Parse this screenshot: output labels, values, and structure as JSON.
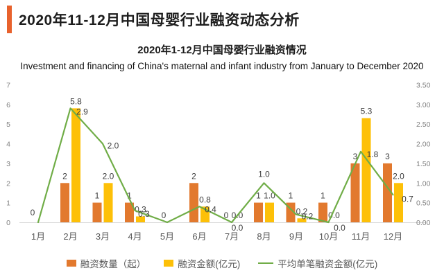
{
  "header": {
    "title": "2020年11-12月中国母婴行业融资动态分析"
  },
  "titles": {
    "zh": "2020年1-12月中国母婴行业融资情况",
    "en": "Investment and financing of China's maternal and infant industry from January to December 2020"
  },
  "colors": {
    "accent": "#E8622D",
    "bar_count": "#E2792E",
    "bar_amount": "#FDC008",
    "line_avg": "#70AD47",
    "axis_line": "#D9D9D9",
    "tick_text": "#808080",
    "category_text": "#595959",
    "value_text": "#3D3D3D"
  },
  "chart_data": {
    "type": "combo-bar-line",
    "title": "2020年1-12月中国母婴行业融资情况",
    "categories": [
      "1月",
      "2月",
      "3月",
      "4月",
      "5月",
      "6月",
      "7月",
      "8月",
      "9月",
      "10月",
      "11月",
      "12月"
    ],
    "series": [
      {
        "name": "融资数量（起）",
        "type": "bar",
        "axis": "left",
        "color": "#E2792E",
        "values": [
          0,
          2,
          1,
          1,
          0,
          2,
          0,
          1,
          1,
          1,
          3,
          3
        ],
        "labels": [
          "",
          "2",
          "1",
          "1",
          "",
          "2",
          "0",
          "1",
          "1",
          "1",
          "3",
          "3"
        ]
      },
      {
        "name": "融资金额(亿元)",
        "type": "bar",
        "axis": "left",
        "color": "#FDC008",
        "values": [
          0,
          5.8,
          2.0,
          0.3,
          0,
          0.8,
          0,
          1.0,
          0.2,
          0,
          5.3,
          2.0
        ],
        "labels": [
          "",
          "5.8",
          "2.0",
          "0.3",
          "",
          "0.8",
          "0.0",
          "1.0",
          "0.2",
          "0.0",
          "5.3",
          "2.0"
        ]
      },
      {
        "name": "平均单笔融资金额(亿元)",
        "type": "line",
        "axis": "right",
        "color": "#70AD47",
        "values": [
          0,
          2.9,
          2.0,
          0.3,
          0,
          0.4,
          0,
          1.0,
          0.2,
          0,
          1.8,
          0.7
        ],
        "labels": [
          "0",
          "2.9",
          "2.0",
          "0.3",
          "0",
          "0.4",
          "0.0",
          "1.0",
          "0.2",
          "0.0",
          "1.8",
          "0.7"
        ],
        "label_offsets": [
          [
            -8,
            -10
          ],
          [
            17,
            9
          ],
          [
            15,
            7
          ],
          [
            13,
            9
          ],
          [
            -5,
            -6
          ],
          [
            16,
            8
          ],
          [
            8,
            12
          ],
          [
            0,
            -9
          ],
          [
            16,
            7
          ],
          [
            16,
            12
          ],
          [
            17,
            8
          ],
          [
            21,
            10
          ]
        ]
      }
    ],
    "left_axis": {
      "min": 0,
      "max": 7,
      "ticks": [
        "0",
        "1",
        "2",
        "3",
        "4",
        "5",
        "6",
        "7"
      ]
    },
    "right_axis": {
      "min": 0,
      "max": 3.5,
      "ticks": [
        "0.00",
        "0.50",
        "1.00",
        "1.50",
        "2.00",
        "2.50",
        "3.00",
        "3.50"
      ]
    },
    "grid": false,
    "legend_position": "bottom"
  }
}
